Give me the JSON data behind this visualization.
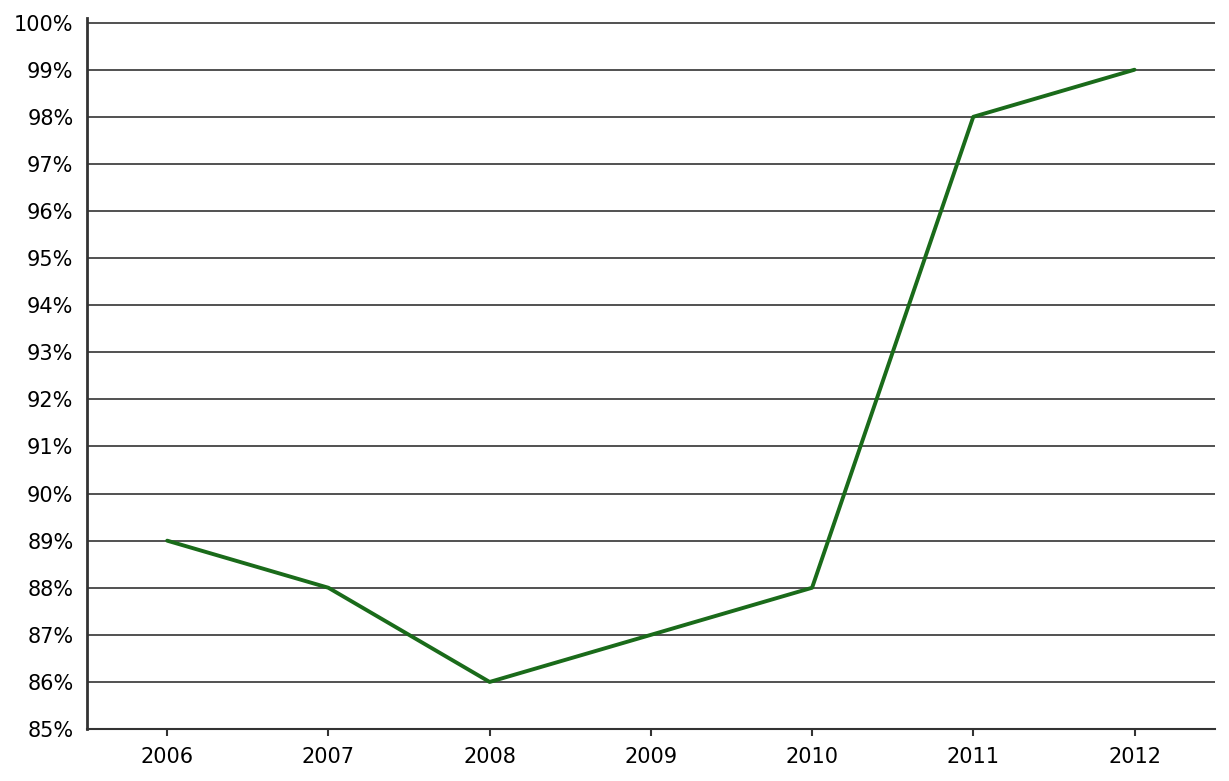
{
  "x": [
    2006,
    2007,
    2008,
    2009,
    2010,
    2011,
    2012
  ],
  "y": [
    0.89,
    0.88,
    0.86,
    0.87,
    0.88,
    0.98,
    0.99
  ],
  "line_color": "#1a6b1a",
  "line_width": 2.8,
  "xlim": [
    2005.5,
    2012.5
  ],
  "ylim": [
    0.85,
    1.001
  ],
  "yticks": [
    0.85,
    0.86,
    0.87,
    0.88,
    0.89,
    0.9,
    0.91,
    0.92,
    0.93,
    0.94,
    0.95,
    0.96,
    0.97,
    0.98,
    0.99,
    1.0
  ],
  "xticks": [
    2006,
    2007,
    2008,
    2009,
    2010,
    2011,
    2012
  ],
  "grid_color": "#333333",
  "spine_color": "#333333",
  "background_color": "#ffffff",
  "tick_label_fontsize": 15
}
